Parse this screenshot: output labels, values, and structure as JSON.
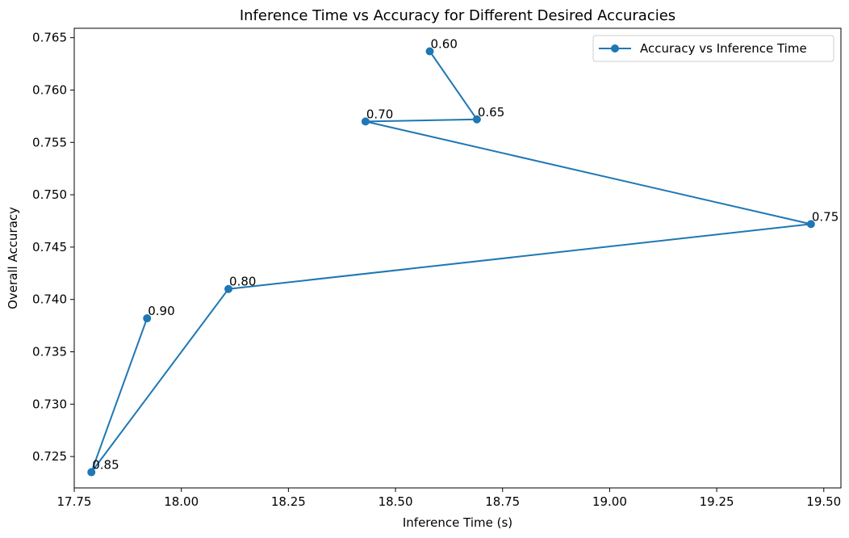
{
  "chart_data": {
    "type": "line",
    "title": "Inference Time vs Accuracy for Different Desired Accuracies",
    "xlabel": "Inference Time (s)",
    "ylabel": "Overall Accuracy",
    "xlim": [
      17.75,
      19.54
    ],
    "ylim": [
      0.722,
      0.7659
    ],
    "x_ticks": [
      17.75,
      18.0,
      18.25,
      18.5,
      18.75,
      19.0,
      19.25,
      19.5
    ],
    "x_tick_labels": [
      "17.75",
      "18.00",
      "18.25",
      "18.50",
      "18.75",
      "19.00",
      "19.25",
      "19.50"
    ],
    "y_ticks": [
      0.725,
      0.73,
      0.735,
      0.74,
      0.745,
      0.75,
      0.755,
      0.76,
      0.765
    ],
    "y_tick_labels": [
      "0.725",
      "0.730",
      "0.735",
      "0.740",
      "0.745",
      "0.750",
      "0.755",
      "0.760",
      "0.765"
    ],
    "grid": false,
    "legend_position": "top-right",
    "series": [
      {
        "name": "Accuracy vs Inference Time",
        "color": "#1f77b4",
        "marker": "circle",
        "points": [
          {
            "x": 18.58,
            "y": 0.7637,
            "label": "0.60"
          },
          {
            "x": 18.69,
            "y": 0.7572,
            "label": "0.65"
          },
          {
            "x": 18.43,
            "y": 0.757,
            "label": "0.70"
          },
          {
            "x": 19.47,
            "y": 0.7472,
            "label": "0.75"
          },
          {
            "x": 18.11,
            "y": 0.741,
            "label": "0.80"
          },
          {
            "x": 17.79,
            "y": 0.7235,
            "label": "0.85"
          },
          {
            "x": 17.92,
            "y": 0.7382,
            "label": "0.90"
          }
        ]
      }
    ]
  }
}
